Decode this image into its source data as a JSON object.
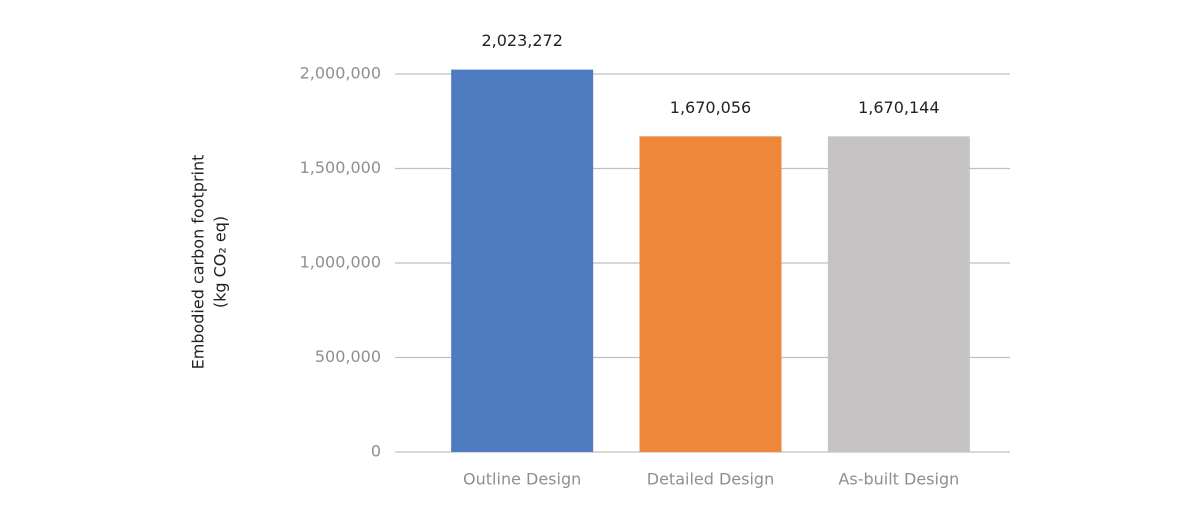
{
  "chart_data": {
    "type": "bar",
    "y_label": [
      "Embodied carbon footprint",
      "(kg CO₂ eq)"
    ],
    "categories": [
      "Outline Design",
      "Detailed Design",
      "As-built Design"
    ],
    "values": [
      2023272,
      1670056,
      1670144
    ],
    "value_labels": [
      "2,023,272",
      "1,670,056",
      "1,670,144"
    ],
    "colors": [
      "#4f7bc0",
      "#ef873a",
      "#c5c3c4"
    ],
    "ylim": [
      0,
      2000000
    ],
    "yticks": [
      0,
      {
        "value": 500000,
        "label": "500,000"
      },
      {
        "value": 1000000,
        "label": "1,000,000"
      },
      {
        "value": 1500000,
        "label": "1,500,000"
      },
      {
        "value": 2000000,
        "label": "2,000,000"
      }
    ],
    "grid": true
  }
}
